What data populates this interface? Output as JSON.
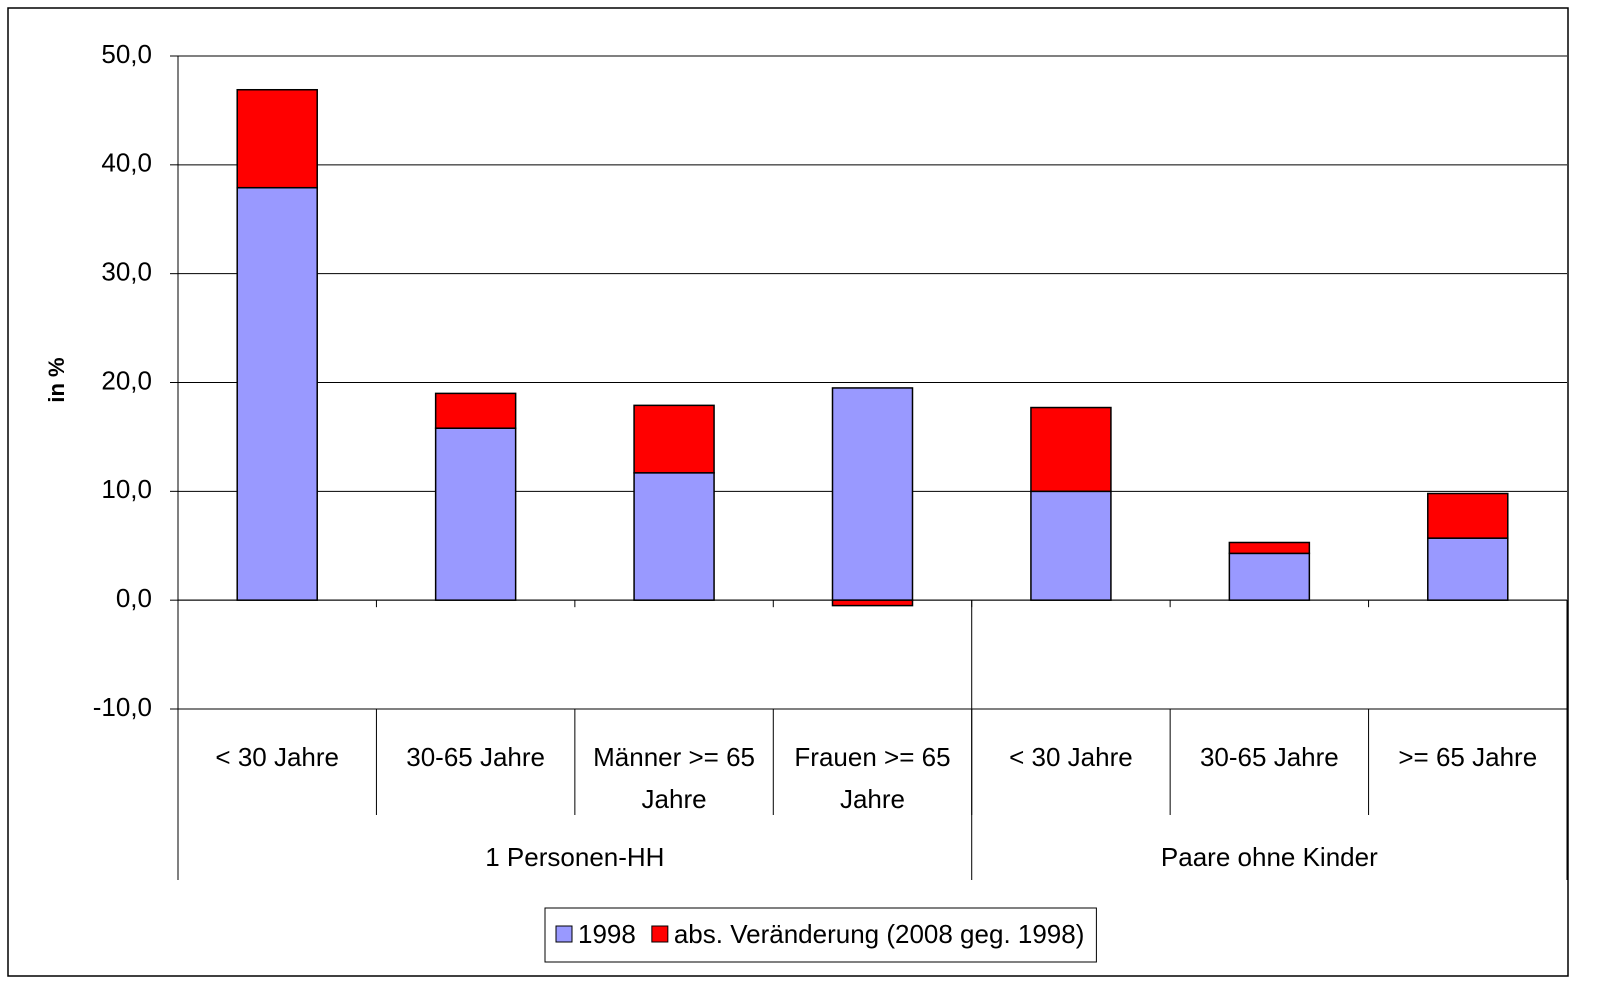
{
  "chart_data": {
    "type": "stacked_bar",
    "y_label": "in %",
    "categories": [
      "< 30 Jahre",
      "30-65 Jahre",
      "Männer >= 65 Jahre",
      "Frauen >= 65 Jahre",
      "< 30 Jahre",
      "30-65 Jahre",
      ">= 65 Jahre"
    ],
    "groups": [
      {
        "label": "1 Personen-HH",
        "span": 4
      },
      {
        "label": "Paare ohne Kinder",
        "span": 3
      }
    ],
    "series": [
      {
        "name": "1998",
        "color": "#9999ff",
        "values": [
          37.9,
          15.8,
          11.7,
          19.5,
          10.0,
          4.3,
          5.7
        ]
      },
      {
        "name": "abs. Veränderung (2008 geg. 1998)",
        "color": "#ff0000",
        "values": [
          9.0,
          3.2,
          6.2,
          -0.5,
          7.7,
          1.0,
          4.1
        ]
      }
    ],
    "ylim": [
      -10,
      50
    ],
    "yticks": [
      {
        "value": -10,
        "label": "-10,0"
      },
      {
        "value": 0,
        "label": "0,0"
      },
      {
        "value": 10,
        "label": "10,0"
      },
      {
        "value": 20,
        "label": "20,0"
      },
      {
        "value": 30,
        "label": "30,0"
      },
      {
        "value": 40,
        "label": "40,0"
      },
      {
        "value": 50,
        "label": "50,0"
      }
    ],
    "grid": true,
    "legend": "bottom"
  }
}
